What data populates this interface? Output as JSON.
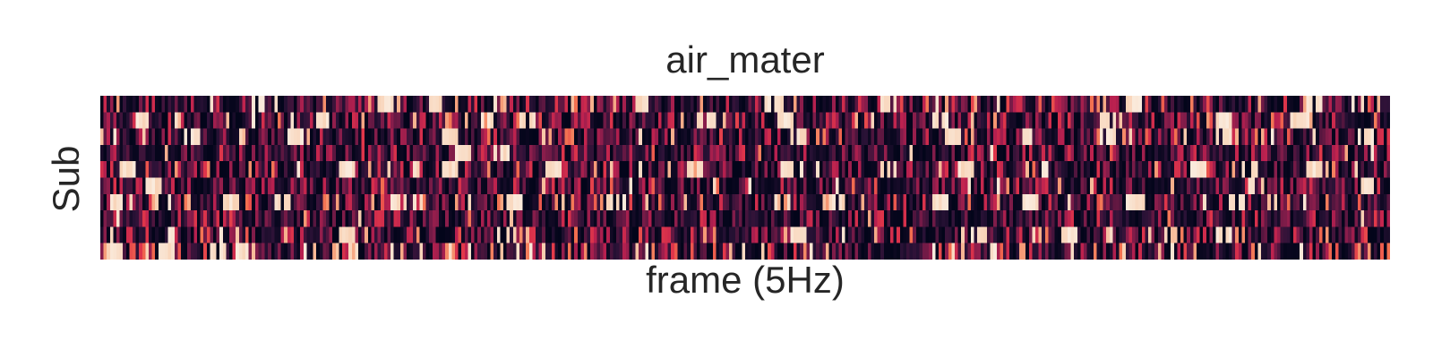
{
  "chart_data": {
    "type": "heatmap",
    "title": "air_mater",
    "xlabel": "frame (5Hz)",
    "ylabel": "Sub",
    "xticks": "none",
    "yticks": "none",
    "n_rows": 10,
    "n_frames": 400,
    "colormap": "rocket",
    "colormap_stops": [
      "#03051a",
      "#2b1237",
      "#57163f",
      "#871d4b",
      "#b9204f",
      "#e1364a",
      "#f36f4f",
      "#f6a27d",
      "#f8cfb1",
      "#faebdd"
    ],
    "value_range": [
      0,
      1
    ],
    "colorbar": "none",
    "row_profiles": [
      {
        "row": 1,
        "density": 0.1,
        "hot_positions": [
          0.12,
          0.22,
          0.26,
          0.42,
          0.52,
          0.61,
          0.8,
          0.94
        ]
      },
      {
        "row": 2,
        "density": 0.08,
        "hot_positions": [
          0.03,
          0.17,
          0.3,
          0.33,
          0.47,
          0.53,
          0.65,
          0.78,
          0.87,
          0.93
        ]
      },
      {
        "row": 3,
        "density": 0.09,
        "hot_positions": [
          0.07,
          0.15,
          0.27,
          0.54,
          0.66,
          0.72,
          0.78,
          0.87,
          0.98
        ]
      },
      {
        "row": 4,
        "density": 0.03,
        "hot_positions": [
          0.28,
          0.31
        ]
      },
      {
        "row": 5,
        "density": 0.07,
        "hot_positions": [
          0.02,
          0.19,
          0.24,
          0.27,
          0.35,
          0.46,
          0.53,
          0.61,
          0.67,
          0.73,
          0.85,
          0.89,
          0.94
        ]
      },
      {
        "row": 6,
        "density": 0.05,
        "hot_positions": [
          0.04,
          0.98
        ]
      },
      {
        "row": 7,
        "density": 0.16,
        "hot_positions": [
          0.01,
          0.1,
          0.14,
          0.23,
          0.32,
          0.4,
          0.57,
          0.65,
          0.72,
          0.8,
          0.88
        ]
      },
      {
        "row": 8,
        "density": 0.03,
        "hot_positions": []
      },
      {
        "row": 9,
        "density": 0.09,
        "hot_positions": [
          0.05,
          0.19,
          0.54,
          0.68,
          0.75,
          0.87
        ]
      },
      {
        "row": 10,
        "density": 0.22,
        "hot_positions": [
          0.01,
          0.05,
          0.09,
          0.11
        ]
      }
    ]
  }
}
